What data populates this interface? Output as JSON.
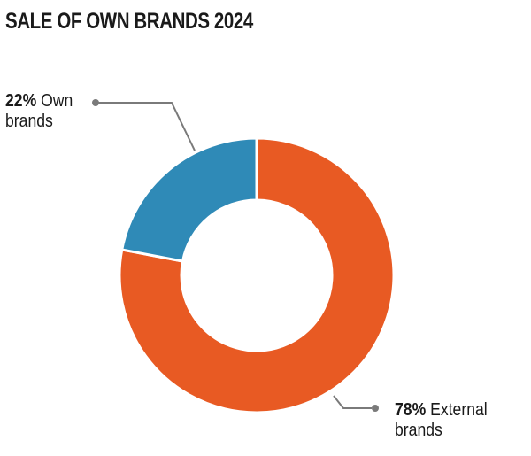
{
  "chart_data": {
    "type": "pie",
    "title": "SALE OF OWN BRANDS 2024",
    "series": [
      {
        "name": "Own brands",
        "value": 22,
        "color": "#2f8ab7"
      },
      {
        "name": "External brands",
        "value": 78,
        "color": "#e85a23"
      }
    ],
    "labels": [
      {
        "pct": "22%",
        "text1": "Own",
        "text2": "brands"
      },
      {
        "pct": "78%",
        "text1": "External",
        "text2": "brands"
      }
    ]
  }
}
